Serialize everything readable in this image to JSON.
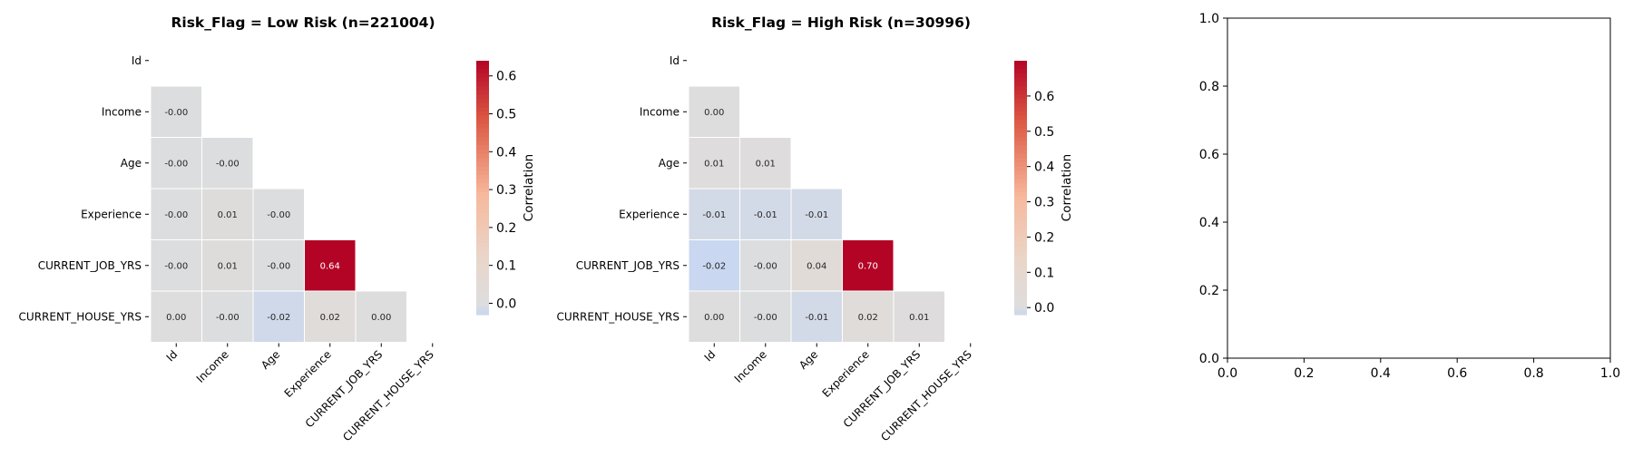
{
  "chart_data": [
    {
      "type": "heatmap",
      "title": "Risk_Flag = Low Risk (n=221004)",
      "row_labels": [
        "Id",
        "Income",
        "Age",
        "Experience",
        "CURRENT_JOB_YRS",
        "CURRENT_HOUSE_YRS"
      ],
      "col_labels": [
        "Id",
        "Income",
        "Age",
        "Experience",
        "CURRENT_JOB_YRS",
        "CURRENT_HOUSE_YRS"
      ],
      "mask": "upper-triangle",
      "cells": [
        {
          "row": 1,
          "col": 0,
          "value": -0.001,
          "label": "-0.00"
        },
        {
          "row": 2,
          "col": 0,
          "value": -0.001,
          "label": "-0.00"
        },
        {
          "row": 2,
          "col": 1,
          "value": -0.001,
          "label": "-0.00"
        },
        {
          "row": 3,
          "col": 0,
          "value": -0.001,
          "label": "-0.00"
        },
        {
          "row": 3,
          "col": 1,
          "value": 0.01,
          "label": "0.01"
        },
        {
          "row": 3,
          "col": 2,
          "value": -0.001,
          "label": "-0.00"
        },
        {
          "row": 4,
          "col": 0,
          "value": -0.001,
          "label": "-0.00"
        },
        {
          "row": 4,
          "col": 1,
          "value": 0.01,
          "label": "0.01"
        },
        {
          "row": 4,
          "col": 2,
          "value": -0.001,
          "label": "-0.00"
        },
        {
          "row": 4,
          "col": 3,
          "value": 0.64,
          "label": "0.64"
        },
        {
          "row": 5,
          "col": 0,
          "value": 0.001,
          "label": "0.00"
        },
        {
          "row": 5,
          "col": 1,
          "value": -0.001,
          "label": "-0.00"
        },
        {
          "row": 5,
          "col": 2,
          "value": -0.02,
          "label": "-0.02"
        },
        {
          "row": 5,
          "col": 3,
          "value": 0.02,
          "label": "0.02"
        },
        {
          "row": 5,
          "col": 4,
          "value": 0.001,
          "label": "0.00"
        }
      ],
      "colorbar": {
        "label": "Correlation",
        "vmin": -0.03,
        "vmax": 0.64,
        "ticks": [
          0.0,
          0.1,
          0.2,
          0.3,
          0.4,
          0.5,
          0.6
        ],
        "tick_labels": [
          "0.0",
          "0.1",
          "0.2",
          "0.3",
          "0.4",
          "0.5",
          "0.6"
        ]
      }
    },
    {
      "type": "heatmap",
      "title": "Risk_Flag = High Risk (n=30996)",
      "row_labels": [
        "Id",
        "Income",
        "Age",
        "Experience",
        "CURRENT_JOB_YRS",
        "CURRENT_HOUSE_YRS"
      ],
      "col_labels": [
        "Id",
        "Income",
        "Age",
        "Experience",
        "CURRENT_JOB_YRS",
        "CURRENT_HOUSE_YRS"
      ],
      "mask": "upper-triangle",
      "cells": [
        {
          "row": 1,
          "col": 0,
          "value": 0.001,
          "label": "0.00"
        },
        {
          "row": 2,
          "col": 0,
          "value": 0.01,
          "label": "0.01"
        },
        {
          "row": 2,
          "col": 1,
          "value": 0.01,
          "label": "0.01"
        },
        {
          "row": 3,
          "col": 0,
          "value": -0.01,
          "label": "-0.01"
        },
        {
          "row": 3,
          "col": 1,
          "value": -0.01,
          "label": "-0.01"
        },
        {
          "row": 3,
          "col": 2,
          "value": -0.01,
          "label": "-0.01"
        },
        {
          "row": 4,
          "col": 0,
          "value": -0.02,
          "label": "-0.02"
        },
        {
          "row": 4,
          "col": 1,
          "value": -0.001,
          "label": "-0.00"
        },
        {
          "row": 4,
          "col": 2,
          "value": 0.04,
          "label": "0.04"
        },
        {
          "row": 4,
          "col": 3,
          "value": 0.7,
          "label": "0.70"
        },
        {
          "row": 5,
          "col": 0,
          "value": 0.001,
          "label": "0.00"
        },
        {
          "row": 5,
          "col": 1,
          "value": -0.001,
          "label": "-0.00"
        },
        {
          "row": 5,
          "col": 2,
          "value": -0.01,
          "label": "-0.01"
        },
        {
          "row": 5,
          "col": 3,
          "value": 0.02,
          "label": "0.02"
        },
        {
          "row": 5,
          "col": 4,
          "value": 0.01,
          "label": "0.01"
        }
      ],
      "colorbar": {
        "label": "Correlation",
        "vmin": -0.02,
        "vmax": 0.7,
        "ticks": [
          0.0,
          0.1,
          0.2,
          0.3,
          0.4,
          0.5,
          0.6
        ],
        "tick_labels": [
          "0.0",
          "0.1",
          "0.2",
          "0.3",
          "0.4",
          "0.5",
          "0.6"
        ]
      }
    },
    {
      "type": "empty",
      "title": "",
      "xlim": [
        0.0,
        1.0
      ],
      "ylim": [
        0.0,
        1.0
      ],
      "xticks": [
        0.0,
        0.2,
        0.4,
        0.6,
        0.8,
        1.0
      ],
      "yticks": [
        0.0,
        0.2,
        0.4,
        0.6,
        0.8,
        1.0
      ],
      "xtick_labels": [
        "0.0",
        "0.2",
        "0.4",
        "0.6",
        "0.8",
        "1.0"
      ],
      "ytick_labels": [
        "0.0",
        "0.2",
        "0.4",
        "0.6",
        "0.8",
        "1.0"
      ]
    }
  ],
  "colors": {
    "neutral": "#dddddd",
    "positive_strong": "#b40426",
    "positive_light": "#f7b89c",
    "negative_light": "#c9d7f0",
    "cell_border": "#ffffff",
    "axis": "#000000"
  }
}
